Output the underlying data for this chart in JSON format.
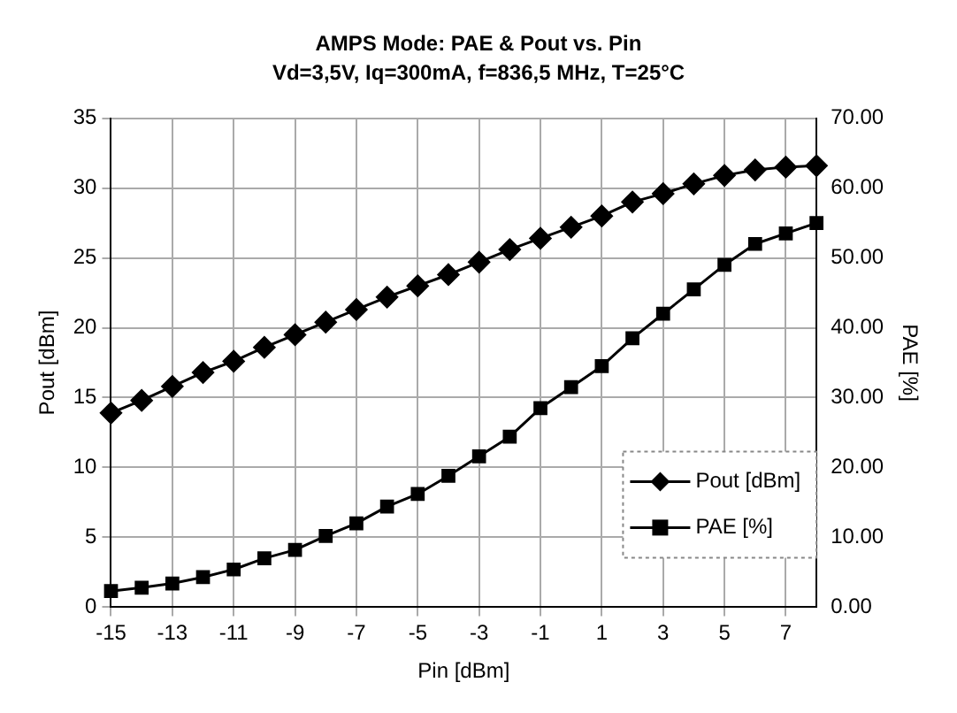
{
  "chart_data": {
    "type": "line",
    "title": "AMPS Mode: PAE & Pout vs. Pin",
    "subtitle": "Vd=3,5V, Iq=300mA, f=836,5 MHz, T=25°C",
    "xlabel": "Pin [dBm]",
    "ylabel": "Pout [dBm]",
    "y2label": "PAE [%]",
    "categories": [
      "-15",
      null,
      "-13",
      null,
      "-11",
      null,
      "-9",
      null,
      "-7",
      null,
      "-5",
      null,
      "-3",
      null,
      "-1",
      null,
      "1",
      null,
      "3",
      null,
      "5",
      null,
      "7",
      null
    ],
    "series": [
      {
        "name": "Pout [dBm]",
        "color": "#000000",
        "marker": "diamond",
        "values": [
          13.9,
          14.8,
          15.8,
          16.8,
          17.6,
          18.6,
          19.5,
          20.4,
          21.3,
          22.2,
          23,
          23.8,
          24.7,
          25.6,
          26.4,
          27.2,
          28,
          29,
          29.6,
          30.3,
          30.9,
          31.3,
          31.5,
          31.6
        ]
      },
      {
        "name": "PAE [%]",
        "color": "#000000",
        "marker": "square",
        "axis": "y2",
        "values": [
          2.3,
          2.8,
          3.4,
          4.3,
          5.4,
          7,
          8.2,
          10.2,
          12,
          14.4,
          16.2,
          18.8,
          21.6,
          24.4,
          28.5,
          31.5,
          34.5,
          38.5,
          42,
          45.5,
          49,
          52,
          53.5,
          55
        ]
      }
    ],
    "ylim": [
      0,
      35
    ],
    "yticks": [
      0,
      5,
      10,
      15,
      20,
      25,
      30,
      35
    ],
    "y2lim": [
      0,
      70
    ],
    "y2ticks": [
      {
        "value": 0,
        "label": "0.00"
      },
      {
        "value": 10,
        "label": "10.00"
      },
      {
        "value": 20,
        "label": "20.00"
      },
      {
        "value": 30,
        "label": "30.00"
      },
      {
        "value": 40,
        "label": "40.00"
      },
      {
        "value": 50,
        "label": "50.00"
      },
      {
        "value": 60,
        "label": "60.00"
      },
      {
        "value": 70,
        "label": "70.00"
      }
    ],
    "grid": true,
    "legend": "bottom right",
    "line_style": "solid"
  }
}
